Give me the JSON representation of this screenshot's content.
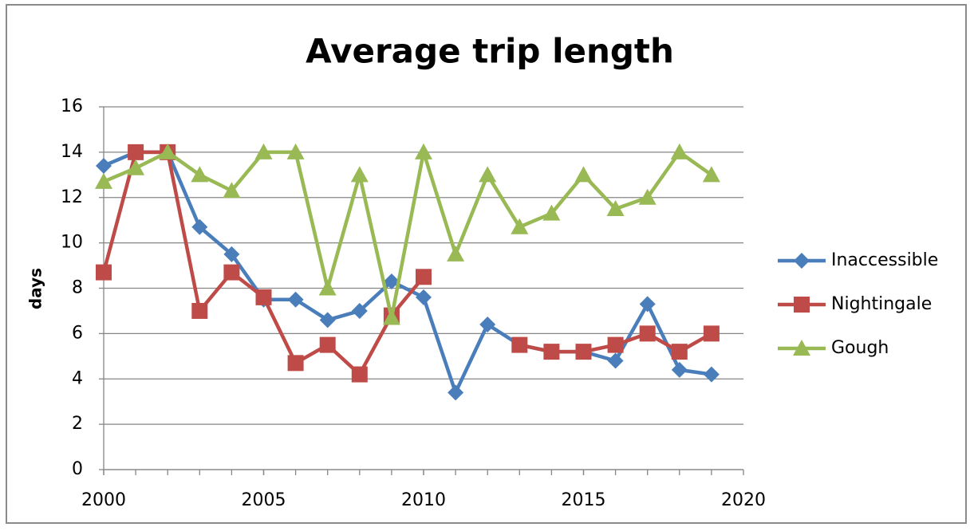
{
  "chart_data": {
    "type": "line",
    "title": "Average trip length",
    "y_label": "days",
    "x": [
      2000,
      2001,
      2002,
      2003,
      2004,
      2005,
      2006,
      2007,
      2008,
      2009,
      2010,
      2011,
      2012,
      2013,
      2014,
      2015,
      2016,
      2017,
      2018,
      2019
    ],
    "xlim": [
      2000,
      2020
    ],
    "xticks": [
      2000,
      2005,
      2010,
      2015,
      2020
    ],
    "ylim": [
      0,
      16
    ],
    "yticks": [
      0,
      2,
      4,
      6,
      8,
      10,
      12,
      14,
      16
    ],
    "grid": true,
    "legend": "right",
    "series": [
      {
        "name": "Inaccessible",
        "color": "#4a7ebb",
        "marker": "diamond",
        "values": [
          13.4,
          14,
          14,
          10.7,
          9.5,
          7.5,
          7.5,
          6.6,
          7.0,
          8.3,
          7.6,
          3.4,
          6.4,
          5.5,
          5.2,
          5.2,
          4.8,
          7.3,
          4.4,
          4.2
        ]
      },
      {
        "name": "Nightingale",
        "color": "#be4b48",
        "marker": "square",
        "values": [
          8.7,
          14,
          14,
          7.0,
          8.7,
          7.6,
          4.7,
          5.5,
          4.2,
          6.8,
          8.5,
          null,
          null,
          5.5,
          5.2,
          5.2,
          5.5,
          6.0,
          5.2,
          6.0
        ]
      },
      {
        "name": "Gough",
        "color": "#98b954",
        "marker": "triangle",
        "values": [
          12.7,
          13.3,
          14,
          13,
          12.3,
          14,
          14,
          8.0,
          13,
          6.7,
          14,
          9.5,
          13,
          10.7,
          11.3,
          13,
          11.5,
          12,
          14,
          13
        ]
      }
    ]
  }
}
